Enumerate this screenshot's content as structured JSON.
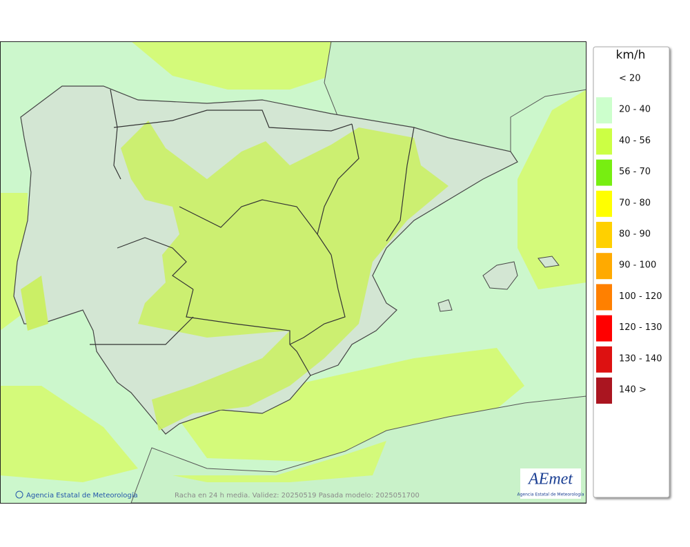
{
  "legend": {
    "unit": "km/h",
    "items": [
      {
        "label": "< 20"
      },
      {
        "label": "20 - 40",
        "color": "#ccffcc"
      },
      {
        "label": "40 - 56",
        "color": "#ccff44"
      },
      {
        "label": "56 - 70",
        "color": "#77ee11"
      },
      {
        "label": "70 - 80",
        "color": "#ffff00"
      },
      {
        "label": "80 - 90",
        "color": "#ffd000"
      },
      {
        "label": "90 - 100",
        "color": "#ffaa00"
      },
      {
        "label": "100 - 120",
        "color": "#ff8000"
      },
      {
        "label": "120 - 130",
        "color": "#ff0000"
      },
      {
        "label": "130 - 140",
        "color": "#dd1111"
      },
      {
        "label": "140 >",
        "color": "#aa1520"
      }
    ]
  },
  "footer": {
    "credit": "Agencia Estatal de Meteorología",
    "caption": "Racha en 24 h media. Validez: 20250519 Pasada modelo: 2025051700",
    "logo": "AEmet",
    "logo_subtitle": "Agencia Estatal de Meteorología"
  }
}
